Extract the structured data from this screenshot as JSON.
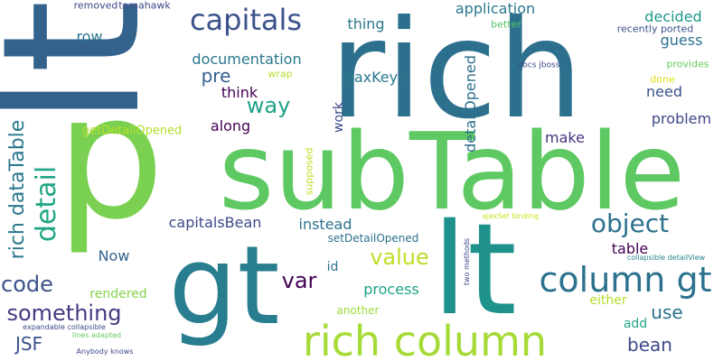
{
  "word_cloud": {
    "background": "#ffffff",
    "words": [
      {
        "text": "lt",
        "color": "#33638d"
      },
      {
        "text": "rich",
        "color": "#2d708e"
      },
      {
        "text": "p",
        "color": "#7ad151"
      },
      {
        "text": "subTable",
        "color": "#5ec962"
      },
      {
        "text": "gt",
        "color": "#287d8e"
      },
      {
        "text": "lt",
        "color": "#20928c"
      },
      {
        "text": "capitals",
        "color": "#3b528b"
      },
      {
        "text": "rich column",
        "color": "#a5db36"
      },
      {
        "text": "column gt",
        "color": "#2c728e"
      },
      {
        "text": "object",
        "color": "#2c728e"
      },
      {
        "text": "detail",
        "color": "#21a685"
      },
      {
        "text": "rich dataTable",
        "color": "#2a788e"
      },
      {
        "text": "something",
        "color": "#443a83"
      },
      {
        "text": "way",
        "color": "#1fa188"
      },
      {
        "text": "code",
        "color": "#3b528b"
      },
      {
        "text": "value",
        "color": "#bddf26"
      },
      {
        "text": "var",
        "color": "#440154"
      },
      {
        "text": "pre",
        "color": "#355f8d"
      },
      {
        "text": "JSF",
        "color": "#3b528b"
      },
      {
        "text": "bean",
        "color": "#3e4989"
      },
      {
        "text": "use",
        "color": "#2c728e"
      },
      {
        "text": "process",
        "color": "#1fa188"
      },
      {
        "text": "documentation",
        "color": "#2a788e"
      },
      {
        "text": "application",
        "color": "#2a788e"
      },
      {
        "text": "thing",
        "color": "#2a788e"
      },
      {
        "text": "decided",
        "color": "#1f998a"
      },
      {
        "text": "ajaxKeys",
        "color": "#2a788e"
      },
      {
        "text": "along",
        "color": "#440154"
      },
      {
        "text": "think",
        "color": "#440154"
      },
      {
        "text": "instead",
        "color": "#2c728e"
      },
      {
        "text": "capitalsBean",
        "color": "#3e4989"
      },
      {
        "text": "detailOpened",
        "color": "#2d708e"
      },
      {
        "text": "problem",
        "color": "#404688"
      },
      {
        "text": "make",
        "color": "#46337e"
      },
      {
        "text": "need",
        "color": "#3b528b"
      },
      {
        "text": "guess",
        "color": "#2c728e"
      },
      {
        "text": "table",
        "color": "#440154"
      },
      {
        "text": "row",
        "color": "#2a788e"
      },
      {
        "text": "Now",
        "color": "#33638d"
      },
      {
        "text": "work",
        "color": "#3e4989"
      },
      {
        "text": "id",
        "color": "#2c728e"
      },
      {
        "text": "rendered",
        "color": "#84d44b"
      },
      {
        "text": "getDetailOpened",
        "color": "#b5de2b"
      },
      {
        "text": "setDetailOpened",
        "color": "#2d708e"
      },
      {
        "text": "another",
        "color": "#9fda3a"
      },
      {
        "text": "either",
        "color": "#b5de2b"
      },
      {
        "text": "add",
        "color": "#22a884"
      },
      {
        "text": "supposed",
        "color": "#bddf26"
      },
      {
        "text": "wrap",
        "color": "#b5de2b"
      },
      {
        "text": "removed",
        "color": "#3e4989"
      },
      {
        "text": "tomahawk",
        "color": "#3e4989"
      },
      {
        "text": "better",
        "color": "#52c569"
      },
      {
        "text": "recently ported",
        "color": "#3b528b"
      },
      {
        "text": "provides",
        "color": "#65cb5e"
      },
      {
        "text": "done",
        "color": "#dde318"
      },
      {
        "text": "docs jboss",
        "color": "#3e4989"
      },
      {
        "text": "ajaxSet binding",
        "color": "#cae11f"
      },
      {
        "text": "two methods",
        "color": "#3e4989"
      },
      {
        "text": "collapsible detailView",
        "color": "#26828e"
      },
      {
        "text": "expandable collapsible",
        "color": "#3e4989"
      },
      {
        "text": "lines adapted",
        "color": "#65cb5e"
      },
      {
        "text": "Anybody knows",
        "color": "#3e4989"
      }
    ]
  }
}
